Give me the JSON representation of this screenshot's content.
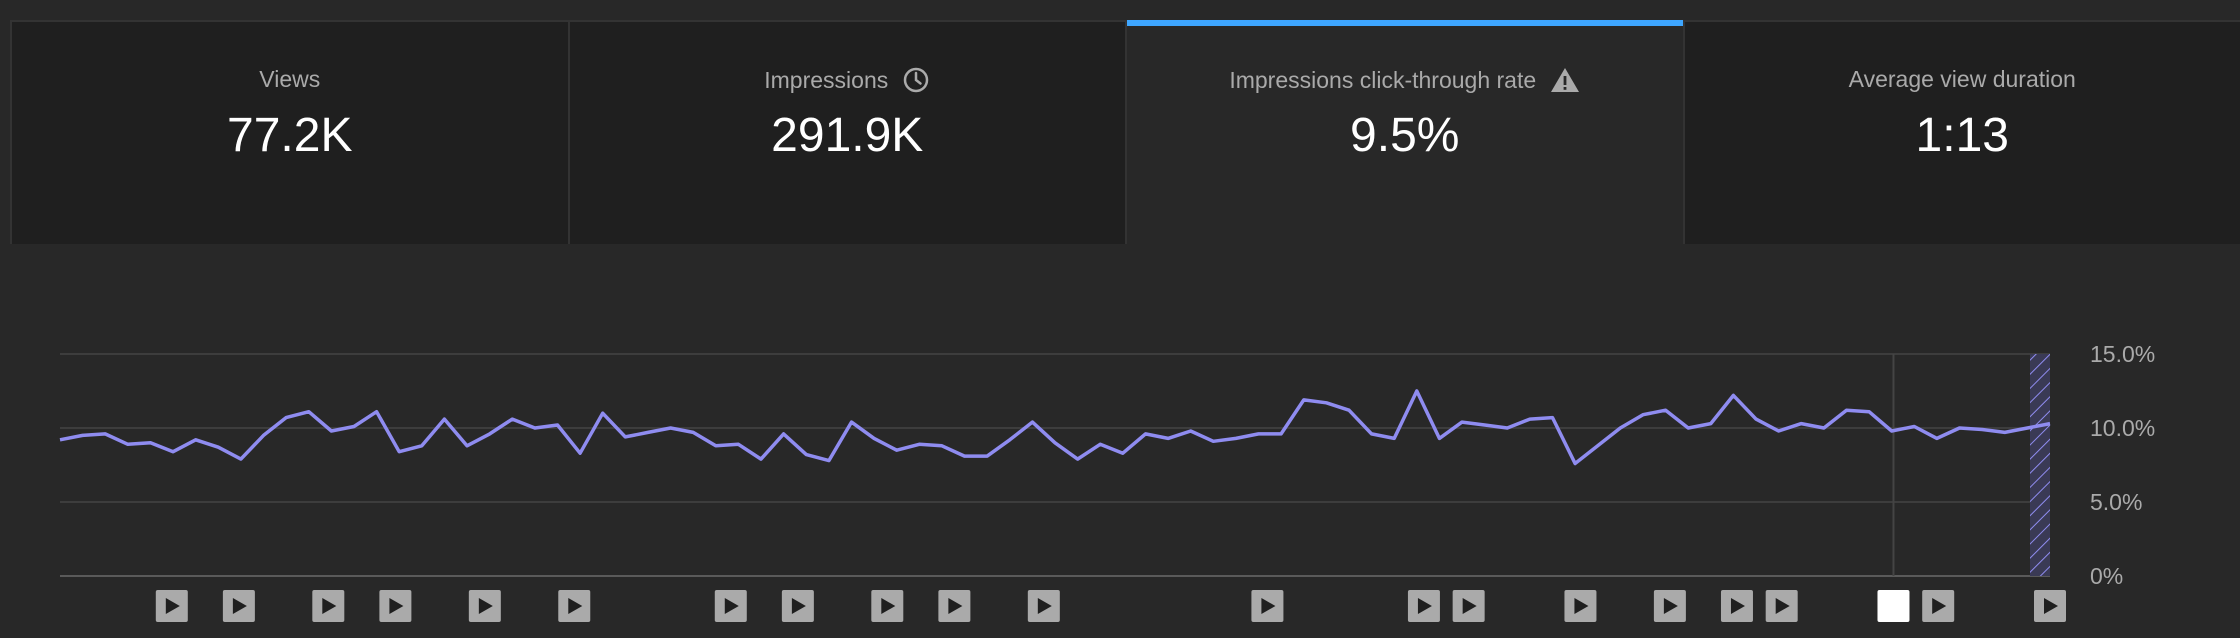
{
  "cards": [
    {
      "label": "Views",
      "value": "77.2K",
      "icon": "",
      "active": false
    },
    {
      "label": "Impressions",
      "value": "291.9K",
      "icon": "clock-icon",
      "active": false
    },
    {
      "label": "Impressions click-through rate",
      "value": "9.5%",
      "icon": "warning-icon",
      "active": true
    },
    {
      "label": "Average view duration",
      "value": "1:13",
      "icon": "",
      "active": false
    }
  ],
  "colors": {
    "line": "#8f8cf0",
    "accent": "#3ea6ff",
    "grid": "#3d3d3d",
    "axis_text": "#aaaaaa",
    "marker": "#aaaaaa",
    "marker_highlight": "#ffffff"
  },
  "chart_data": {
    "type": "line",
    "series": [
      {
        "values": [
          9.2,
          9.5,
          9.6,
          8.9,
          9.0,
          8.4,
          9.2,
          8.7,
          7.9,
          9.5,
          10.7,
          11.1,
          9.8,
          10.1,
          11.1,
          8.4,
          8.8,
          10.6,
          8.8,
          9.6,
          10.6,
          10.0,
          10.2,
          8.3,
          11.0,
          9.4,
          9.7,
          10.0,
          9.7,
          8.8,
          8.9,
          7.9,
          9.6,
          8.2,
          7.8,
          10.4,
          9.3,
          8.5,
          8.9,
          8.8,
          8.1,
          8.1,
          9.2,
          10.4,
          9.0,
          7.9,
          8.9,
          8.3,
          9.6,
          9.3,
          9.8,
          9.1,
          9.3,
          9.6,
          9.6,
          11.9,
          11.7,
          11.2,
          9.6,
          9.3,
          12.5,
          9.3,
          10.4,
          10.2,
          10.0,
          10.6,
          10.7,
          7.6,
          8.8,
          10.0,
          10.9,
          11.2,
          10.0,
          10.3,
          12.2,
          10.6,
          9.8,
          10.3,
          10.0,
          11.2,
          11.1,
          9.8,
          10.1,
          9.3,
          10.0,
          9.9,
          9.7,
          10.0,
          10.3
        ]
      }
    ],
    "y_tick_labels": [
      "15.0%",
      "10.0%",
      "5.0%",
      "0%"
    ],
    "ylim": [
      0,
      15
    ],
    "grid": true,
    "partial_period_at_end": true,
    "video_markers": {
      "total_points": 89,
      "indices": [
        5,
        8,
        12,
        15,
        19,
        23,
        30,
        33,
        37,
        40,
        44,
        54,
        61,
        63,
        68,
        72,
        75,
        77,
        82,
        84,
        89
      ],
      "highlighted_index": 82
    }
  }
}
